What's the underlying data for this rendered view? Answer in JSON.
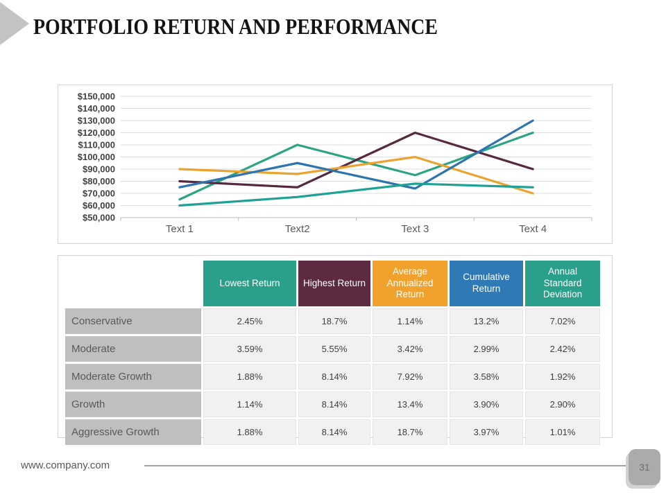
{
  "title": "PORTFOLIO RETURN AND PERFORMANCE",
  "colors": {
    "teal": "#2aa08a",
    "maroon": "#5d2a42",
    "orange": "#f0a22c",
    "blue": "#2f79b5",
    "grid": "#dedede",
    "axis": "#bebebe",
    "row_label_bg": "#bfbfbf",
    "value_cell_bg": "#f1f1f1"
  },
  "chart_data": {
    "type": "line",
    "title": "",
    "xlabel": "",
    "ylabel": "",
    "categories": [
      "Text 1",
      "Text2",
      "Text 3",
      "Text 4"
    ],
    "ylim": [
      50000,
      150000
    ],
    "y_ticks": [
      "$150,000",
      "$140,000",
      "$130,000",
      "$120,000",
      "$110,000",
      "$100,000",
      "$90,000",
      "$80,000",
      "$70,000",
      "$60,000",
      "$50,000"
    ],
    "grid": true,
    "legend_position": "none",
    "series": [
      {
        "name": "Lowest Return",
        "color": "#2aa483",
        "values": [
          65000,
          110000,
          85000,
          120000
        ]
      },
      {
        "name": "Highest Return",
        "color": "#57293f",
        "values": [
          80000,
          75000,
          120000,
          90000
        ]
      },
      {
        "name": "Average Annualized Return",
        "color": "#eba32f",
        "values": [
          90000,
          86000,
          100000,
          70000
        ]
      },
      {
        "name": "Cumulative Return",
        "color": "#2e75b0",
        "values": [
          75000,
          95000,
          74000,
          130000
        ]
      },
      {
        "name": "Annual Standard Deviation",
        "color": "#1fa295",
        "values": [
          60000,
          67000,
          78000,
          75000
        ]
      }
    ]
  },
  "table": {
    "columns": [
      {
        "label": "Lowest Return",
        "color": "#2aa08a"
      },
      {
        "label": "Highest Return",
        "color": "#5d2a42"
      },
      {
        "label": "Average Annualized Return",
        "color": "#f0a22c"
      },
      {
        "label": "Cumulative Return",
        "color": "#2f79b5"
      },
      {
        "label": "Annual Standard Deviation",
        "color": "#2aa08a"
      }
    ],
    "rows": [
      {
        "label": "Conservative",
        "values": [
          "2.45%",
          "18.7%",
          "1.14%",
          "13.2%",
          "7.02%"
        ]
      },
      {
        "label": "Moderate",
        "values": [
          "3.59%",
          "5.55%",
          "3.42%",
          "2.99%",
          "2.42%"
        ]
      },
      {
        "label": "Moderate Growth",
        "values": [
          "1.88%",
          "8.14%",
          "7.92%",
          "3.58%",
          "1.92%"
        ]
      },
      {
        "label": "Growth",
        "values": [
          "1.14%",
          "8.14%",
          "13.4%",
          "3.90%",
          "2.90%"
        ]
      },
      {
        "label": "Aggressive Growth",
        "values": [
          "1.88%",
          "8.14%",
          "18.7%",
          "3.97%",
          "1.01%"
        ]
      }
    ]
  },
  "footer": {
    "url": "www.company.com",
    "page": "31"
  }
}
